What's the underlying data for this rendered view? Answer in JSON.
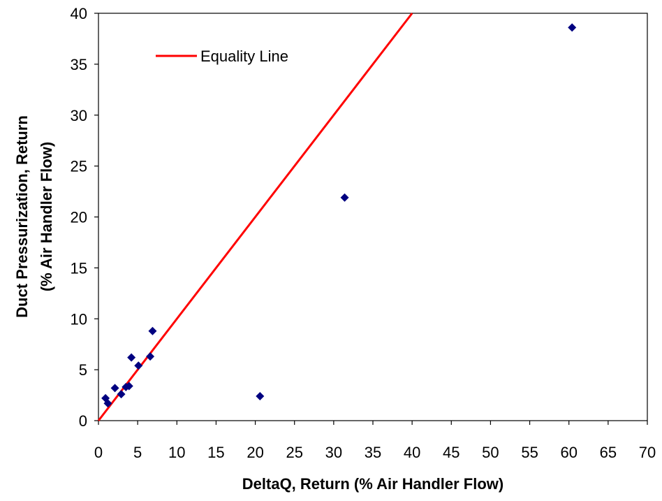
{
  "chart_data": {
    "type": "scatter",
    "title": "",
    "xlabel": "DeltaQ, Return (% Air Handler Flow)",
    "ylabel_line1": "Duct Pressurization, Return",
    "ylabel_line2": "(% Air Handler Flow)",
    "xlim": [
      0,
      70
    ],
    "ylim": [
      0,
      40
    ],
    "x_ticks": [
      0,
      5,
      10,
      15,
      20,
      25,
      30,
      35,
      40,
      45,
      50,
      55,
      60,
      65,
      70
    ],
    "y_ticks": [
      0,
      5,
      10,
      15,
      20,
      25,
      30,
      35,
      40
    ],
    "grid": false,
    "legend": {
      "position": "top-left",
      "entries": [
        "Equality Line"
      ]
    },
    "series": [
      {
        "type": "scatter",
        "marker": "diamond",
        "color": "#000080",
        "points": [
          [
            0.9,
            2.2
          ],
          [
            1.2,
            1.7
          ],
          [
            2.1,
            3.2
          ],
          [
            2.9,
            2.6
          ],
          [
            3.5,
            3.3
          ],
          [
            3.9,
            3.4
          ],
          [
            4.2,
            6.2
          ],
          [
            5.1,
            5.4
          ],
          [
            6.6,
            6.3
          ],
          [
            6.9,
            8.8
          ],
          [
            20.6,
            2.4
          ],
          [
            31.4,
            21.9
          ],
          [
            60.4,
            38.6
          ]
        ]
      },
      {
        "name": "Equality Line",
        "type": "line",
        "color": "#ff0000",
        "points": [
          [
            0,
            0
          ],
          [
            40,
            40
          ]
        ]
      }
    ]
  }
}
